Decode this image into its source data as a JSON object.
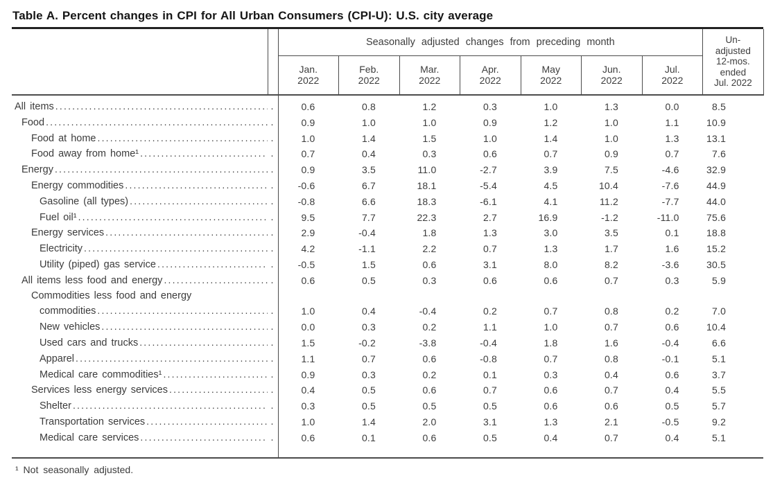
{
  "title": "Table A. Percent changes in CPI for All Urban Consumers (CPI-U): U.S. city average",
  "table": {
    "col_group_header": "Seasonally adjusted changes from preceding month",
    "unadjusted_header": "Un-\nadjusted\n12-mos.\nended\nJul. 2022",
    "months": [
      "Jan.\n2022",
      "Feb.\n2022",
      "Mar.\n2022",
      "Apr.\n2022",
      "May\n2022",
      "Jun.\n2022",
      "Jul.\n2022"
    ],
    "rows": [
      {
        "label": "All items",
        "indent": 0,
        "values": [
          "0.6",
          "0.8",
          "1.2",
          "0.3",
          "1.0",
          "1.3",
          "0.0",
          "8.5"
        ]
      },
      {
        "label": "Food",
        "indent": 1,
        "values": [
          "0.9",
          "1.0",
          "1.0",
          "0.9",
          "1.2",
          "1.0",
          "1.1",
          "10.9"
        ]
      },
      {
        "label": "Food at home",
        "indent": 2,
        "values": [
          "1.0",
          "1.4",
          "1.5",
          "1.0",
          "1.4",
          "1.0",
          "1.3",
          "13.1"
        ]
      },
      {
        "label": "Food away from home¹",
        "indent": 2,
        "values": [
          "0.7",
          "0.4",
          "0.3",
          "0.6",
          "0.7",
          "0.9",
          "0.7",
          "7.6"
        ]
      },
      {
        "label": "Energy",
        "indent": 1,
        "values": [
          "0.9",
          "3.5",
          "11.0",
          "-2.7",
          "3.9",
          "7.5",
          "-4.6",
          "32.9"
        ]
      },
      {
        "label": "Energy commodities",
        "indent": 2,
        "values": [
          "-0.6",
          "6.7",
          "18.1",
          "-5.4",
          "4.5",
          "10.4",
          "-7.6",
          "44.9"
        ]
      },
      {
        "label": "Gasoline (all types)",
        "indent": 3,
        "values": [
          "-0.8",
          "6.6",
          "18.3",
          "-6.1",
          "4.1",
          "11.2",
          "-7.7",
          "44.0"
        ]
      },
      {
        "label": "Fuel oil¹",
        "indent": 3,
        "values": [
          "9.5",
          "7.7",
          "22.3",
          "2.7",
          "16.9",
          "-1.2",
          "-11.0",
          "75.6"
        ]
      },
      {
        "label": "Energy services",
        "indent": 2,
        "values": [
          "2.9",
          "-0.4",
          "1.8",
          "1.3",
          "3.0",
          "3.5",
          "0.1",
          "18.8"
        ]
      },
      {
        "label": "Electricity",
        "indent": 3,
        "values": [
          "4.2",
          "-1.1",
          "2.2",
          "0.7",
          "1.3",
          "1.7",
          "1.6",
          "15.2"
        ]
      },
      {
        "label": "Utility (piped) gas service",
        "indent": 3,
        "values": [
          "-0.5",
          "1.5",
          "0.6",
          "3.1",
          "8.0",
          "8.2",
          "-3.6",
          "30.5"
        ]
      },
      {
        "label": "All items less food and energy",
        "indent": 1,
        "values": [
          "0.6",
          "0.5",
          "0.3",
          "0.6",
          "0.6",
          "0.7",
          "0.3",
          "5.9"
        ]
      },
      {
        "label": "Commodities less food and energy",
        "label2": "commodities",
        "indent": 2,
        "values": [
          "1.0",
          "0.4",
          "-0.4",
          "0.2",
          "0.7",
          "0.8",
          "0.2",
          "7.0"
        ]
      },
      {
        "label": "New vehicles",
        "indent": 3,
        "values": [
          "0.0",
          "0.3",
          "0.2",
          "1.1",
          "1.0",
          "0.7",
          "0.6",
          "10.4"
        ]
      },
      {
        "label": "Used cars and trucks",
        "indent": 3,
        "values": [
          "1.5",
          "-0.2",
          "-3.8",
          "-0.4",
          "1.8",
          "1.6",
          "-0.4",
          "6.6"
        ]
      },
      {
        "label": "Apparel",
        "indent": 3,
        "values": [
          "1.1",
          "0.7",
          "0.6",
          "-0.8",
          "0.7",
          "0.8",
          "-0.1",
          "5.1"
        ]
      },
      {
        "label": "Medical care commodities¹",
        "indent": 3,
        "values": [
          "0.9",
          "0.3",
          "0.2",
          "0.1",
          "0.3",
          "0.4",
          "0.6",
          "3.7"
        ]
      },
      {
        "label": "Services less energy services",
        "indent": 2,
        "values": [
          "0.4",
          "0.5",
          "0.6",
          "0.7",
          "0.6",
          "0.7",
          "0.4",
          "5.5"
        ]
      },
      {
        "label": "Shelter",
        "indent": 3,
        "values": [
          "0.3",
          "0.5",
          "0.5",
          "0.5",
          "0.6",
          "0.6",
          "0.5",
          "5.7"
        ]
      },
      {
        "label": "Transportation services",
        "indent": 3,
        "values": [
          "1.0",
          "1.4",
          "2.0",
          "3.1",
          "1.3",
          "2.1",
          "-0.5",
          "9.2"
        ]
      },
      {
        "label": "Medical care services",
        "indent": 3,
        "values": [
          "0.6",
          "0.1",
          "0.6",
          "0.5",
          "0.4",
          "0.7",
          "0.4",
          "5.1"
        ]
      }
    ]
  },
  "footnote": "¹ Not seasonally adjusted."
}
